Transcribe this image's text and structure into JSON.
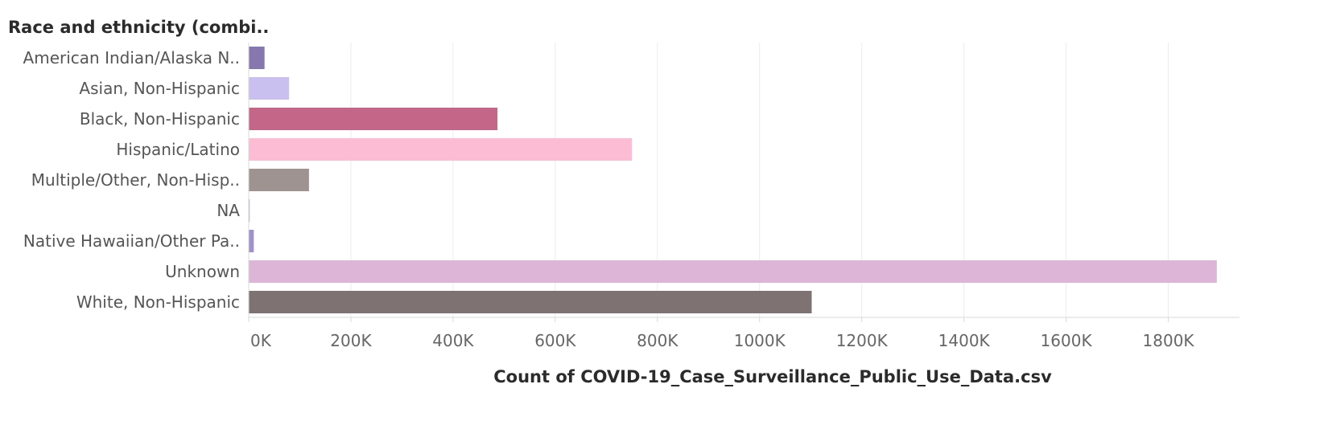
{
  "chart_data": {
    "type": "bar",
    "orientation": "horizontal",
    "row_header": "Race and ethnicity (combi..",
    "xlabel": "Count of COVID-19_Case_Surveillance_Public_Use_Data.csv",
    "categories": [
      "American Indian/Alaska N..",
      "Asian, Non-Hispanic",
      "Black, Non-Hispanic",
      "Hispanic/Latino",
      "Multiple/Other, Non-Hisp..",
      "NA",
      "Native Hawaiian/Other Pa..",
      "Unknown",
      "White, Non-Hispanic"
    ],
    "values": [
      31000,
      79000,
      487000,
      750000,
      118000,
      2000,
      10000,
      1895000,
      1102000
    ],
    "colors": [
      "#8677ae",
      "#c9c0f0",
      "#c46688",
      "#fcbdd4",
      "#9e9391",
      "#b9a9df",
      "#a092c8",
      "#ddb5d6",
      "#7e7372"
    ],
    "xlim": [
      0,
      2000000
    ],
    "xticks": [
      "0K",
      "200K",
      "400K",
      "600K",
      "800K",
      "1000K",
      "1200K",
      "1400K",
      "1600K",
      "1800K"
    ],
    "xtick_values": [
      0,
      200000,
      400000,
      600000,
      800000,
      1000000,
      1200000,
      1400000,
      1600000,
      1800000
    ],
    "grid": true
  }
}
